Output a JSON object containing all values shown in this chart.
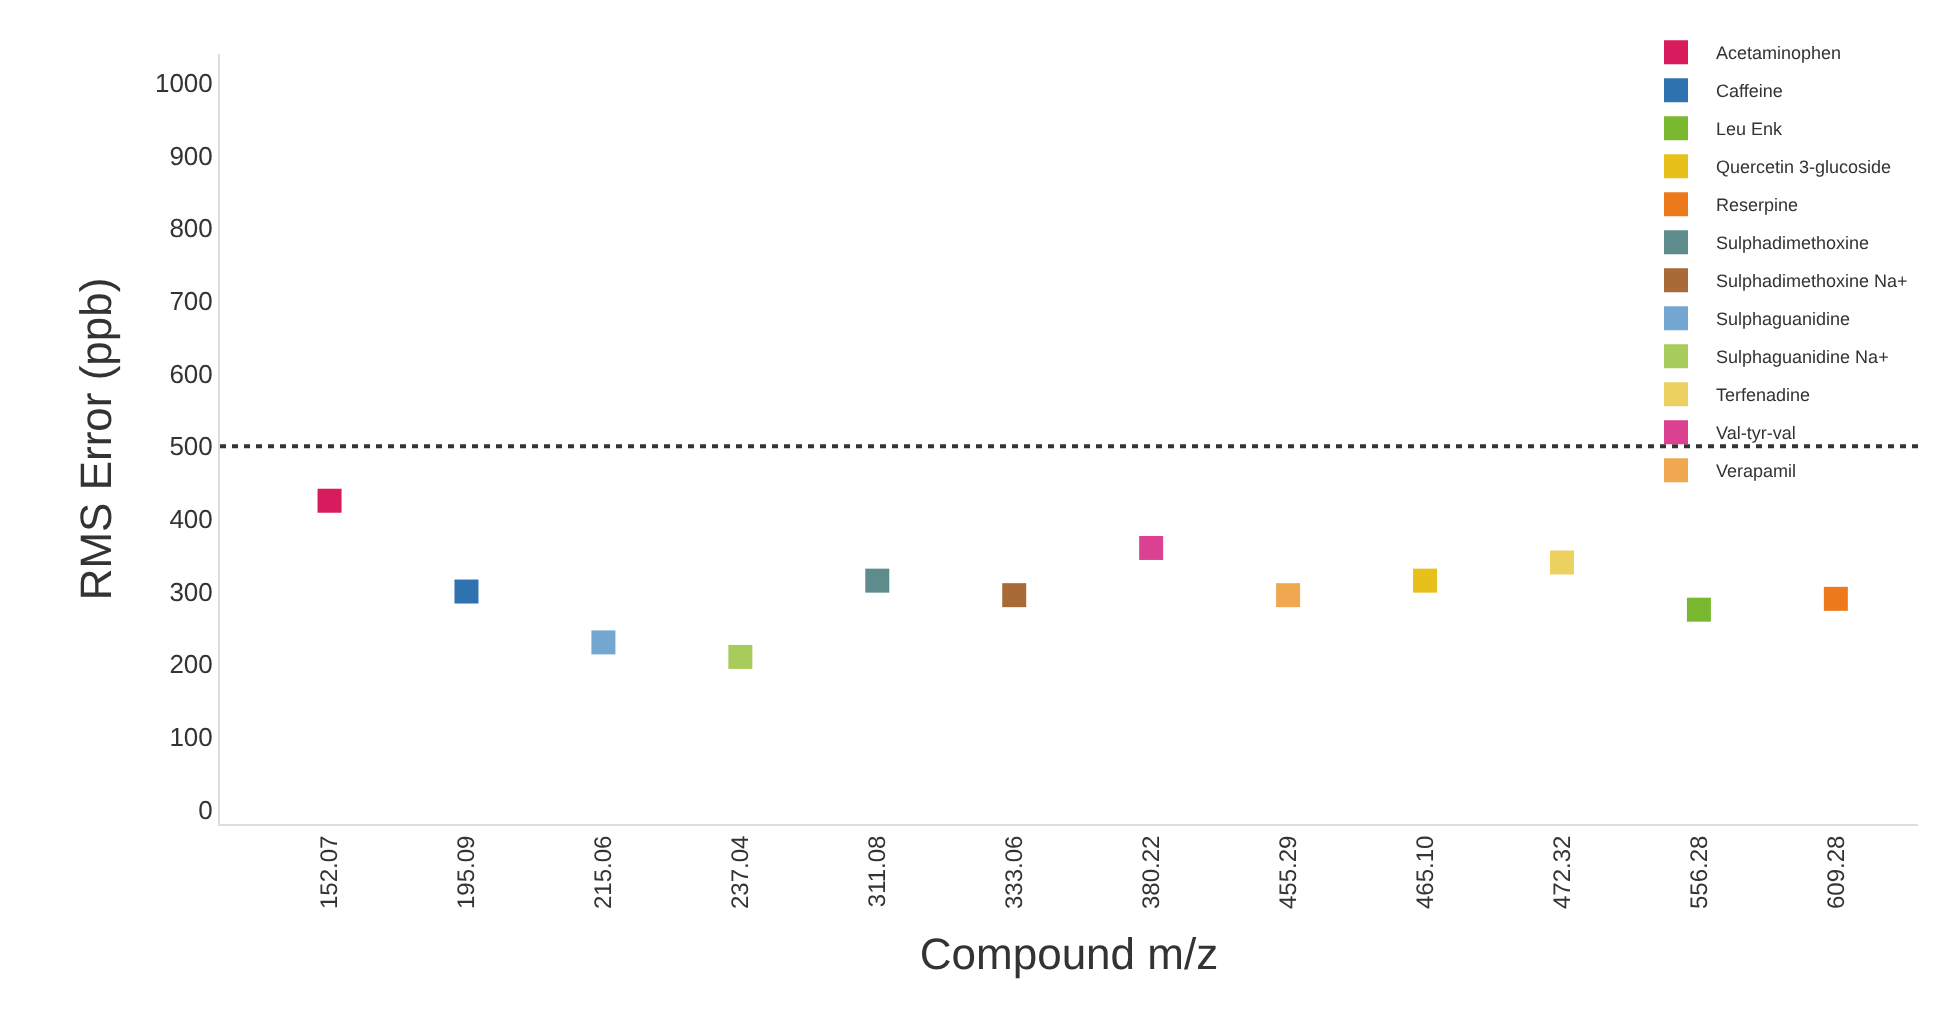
{
  "chart_data": {
    "type": "scatter",
    "xlabel": "Compound m/z",
    "ylabel": "RMS Error (ppb)",
    "categories": [
      "152.07",
      "195.09",
      "215.06",
      "237.04",
      "311.08",
      "333.06",
      "380.22",
      "455.29",
      "465.10",
      "472.32",
      "556.28",
      "609.28"
    ],
    "series": [
      {
        "name": "Acetaminophen",
        "color": "#d81b5c",
        "x": [
          "152.07"
        ],
        "values": [
          425
        ]
      },
      {
        "name": "Caffeine",
        "color": "#2e72b0",
        "x": [
          "195.09"
        ],
        "values": [
          300
        ]
      },
      {
        "name": "Leu Enk",
        "color": "#7ab830",
        "x": [
          "556.28"
        ],
        "values": [
          275
        ]
      },
      {
        "name": "Quercetin 3-glucoside",
        "color": "#e8c01a",
        "x": [
          "465.10"
        ],
        "values": [
          315
        ]
      },
      {
        "name": "Reserpine",
        "color": "#ec7a1c",
        "x": [
          "609.28"
        ],
        "values": [
          290
        ]
      },
      {
        "name": "Sulphadimethoxine",
        "color": "#5e8c8c",
        "x": [
          "311.08"
        ],
        "values": [
          315
        ]
      },
      {
        "name": "Sulphadimethoxine Na+",
        "color": "#a86a36",
        "x": [
          "333.06"
        ],
        "values": [
          295
        ]
      },
      {
        "name": "Sulphaguanidine",
        "color": "#74a6d2",
        "x": [
          "215.06"
        ],
        "values": [
          230
        ]
      },
      {
        "name": "Sulphaguanidine Na+",
        "color": "#a8cc5c",
        "x": [
          "237.04"
        ],
        "values": [
          210
        ]
      },
      {
        "name": "Terfenadine",
        "color": "#ecd060",
        "x": [
          "472.32"
        ],
        "values": [
          340
        ]
      },
      {
        "name": "Val-tyr-val",
        "color": "#dc4090",
        "x": [
          "380.22"
        ],
        "values": [
          360
        ]
      },
      {
        "name": "Verapamil",
        "color": "#f0a850",
        "x": [
          "455.29"
        ],
        "values": [
          295
        ]
      }
    ],
    "ylim": [
      -20,
      1040
    ],
    "yticks": [
      0,
      100,
      200,
      300,
      400,
      500,
      600,
      700,
      800,
      900,
      1000
    ],
    "ref_lines": [
      {
        "axis": "y",
        "value": 500,
        "label": null,
        "color": "#333333",
        "line_style": "dotted"
      }
    ],
    "marker": "square",
    "legend": "top right"
  }
}
